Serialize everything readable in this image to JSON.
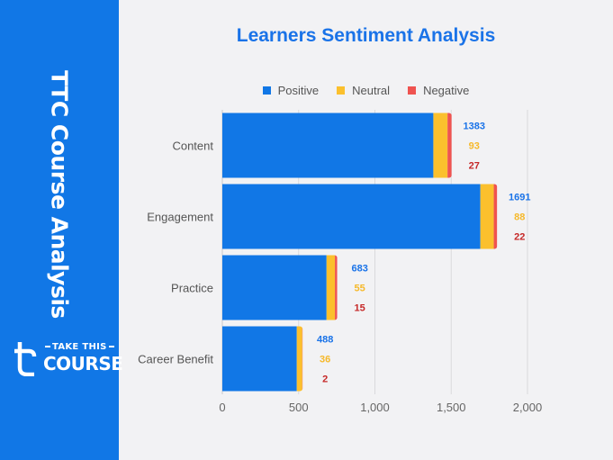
{
  "sidebar": {
    "title": "TTC Course Analysis",
    "logo_line1": "TAKE THIS",
    "logo_line2": "COURSE"
  },
  "colors": {
    "sidebar_bg": "#1177e6",
    "positive": "#1177e6",
    "neutral": "#fbc02d",
    "negative": "#ef5350",
    "positive_label": "#1a73e8",
    "neutral_label": "#f6b92b",
    "negative_label": "#c62828"
  },
  "chart_data": {
    "type": "bar",
    "orientation": "horizontal",
    "stacked": true,
    "title": "Learners Sentiment Analysis",
    "categories": [
      "Content",
      "Engagement",
      "Practice",
      "Career Benefit"
    ],
    "series": [
      {
        "name": "Positive",
        "values": [
          1383,
          1691,
          683,
          488
        ]
      },
      {
        "name": "Neutral",
        "values": [
          93,
          88,
          55,
          36
        ]
      },
      {
        "name": "Negative",
        "values": [
          27,
          22,
          15,
          2
        ]
      }
    ],
    "xlim": [
      0,
      2000
    ],
    "xticks": [
      0,
      500,
      1000,
      1500,
      2000
    ],
    "xtick_labels": [
      "0",
      "500",
      "1,000",
      "1,500",
      "2,000"
    ],
    "grid": "vertical",
    "legend_position": "top",
    "data_labels": true
  }
}
